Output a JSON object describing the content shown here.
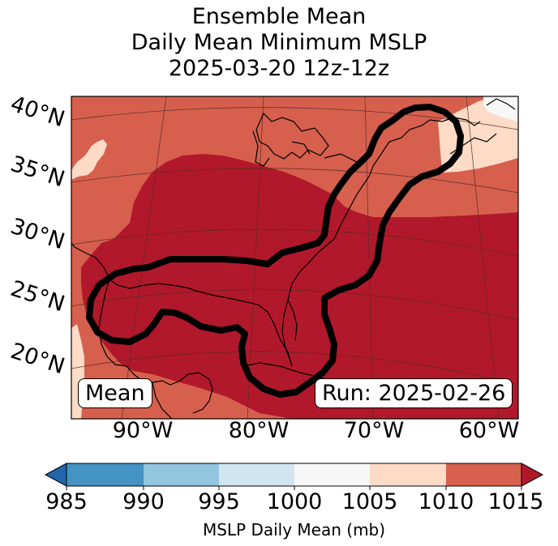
{
  "title": {
    "line1": "Ensemble Mean",
    "line2": "Daily Mean Minimum MSLP",
    "line3": "2025-03-20 12z-12z"
  },
  "map": {
    "lat_labels": [
      "40°N",
      "35°N",
      "30°N",
      "25°N",
      "20°N"
    ],
    "lon_labels": [
      "90°W",
      "80°W",
      "70°W",
      "60°W"
    ],
    "left_box": "Mean",
    "right_box": "Run: 2025-02-26",
    "colors": {
      "c1005_1010": "#fddbc7",
      "c1010_1015": "#d6604d",
      "c1015_plus": "#b2182b",
      "c1000_1005": "#f7f7f7",
      "contour": "#000000"
    }
  },
  "colorbar": {
    "ticks": [
      "985",
      "990",
      "995",
      "1000",
      "1005",
      "1010",
      "1015"
    ],
    "label": "MSLP Daily Mean (mb)",
    "colors": [
      "#2166ac",
      "#4393c3",
      "#92c5de",
      "#d1e5f0",
      "#f7f7f7",
      "#fddbc7",
      "#d6604d",
      "#b2182b"
    ]
  }
}
